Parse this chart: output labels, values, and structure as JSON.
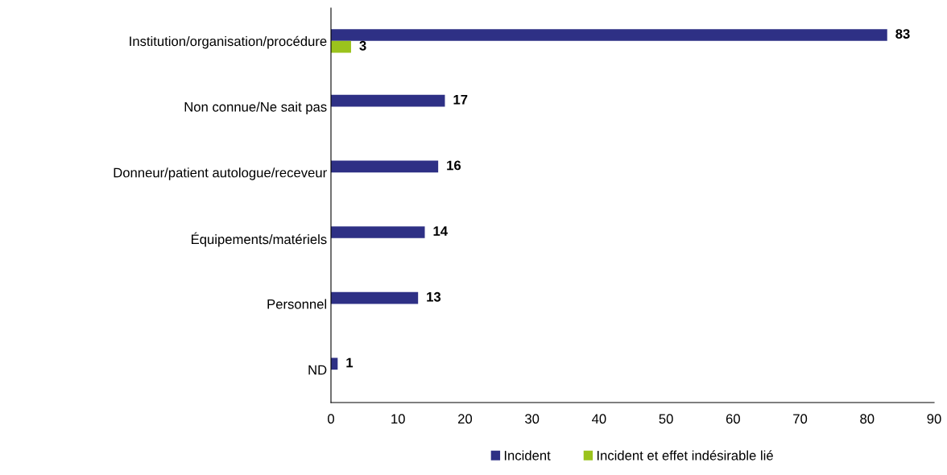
{
  "chart_data": {
    "type": "bar",
    "orientation": "horizontal",
    "categories": [
      "Institution/organisation/procédure",
      "Non connue/Ne sait pas",
      "Donneur/patient autologue/receveur",
      "Équipements/matériels",
      "Personnel",
      "ND"
    ],
    "series": [
      {
        "name": "Incident",
        "color": "#2e3085",
        "values": [
          83,
          17,
          16,
          14,
          13,
          1
        ]
      },
      {
        "name": "Incident et effet indésirable lié",
        "color": "#9bc31c",
        "values": [
          3,
          null,
          null,
          null,
          null,
          null
        ]
      }
    ],
    "xlim": [
      0,
      90
    ],
    "xticks": [
      0,
      10,
      20,
      30,
      40,
      50,
      60,
      70,
      80,
      90
    ],
    "grid": false,
    "legend": "bottom",
    "data_labels": true
  }
}
